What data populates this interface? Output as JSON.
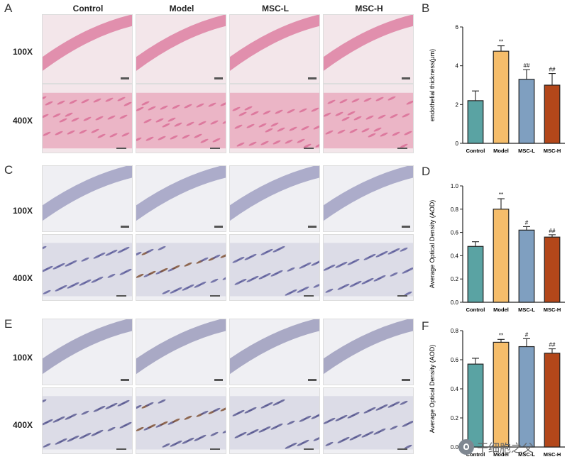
{
  "panel_letters": [
    "A",
    "B",
    "C",
    "D",
    "E",
    "F"
  ],
  "column_headers": [
    "Control",
    "Model",
    "MSC-L",
    "MSC-H"
  ],
  "row_labels": [
    "100X",
    "400X"
  ],
  "micrographs": [
    {
      "panel": "A",
      "stain": "HE",
      "color": "#d96a93"
    },
    {
      "panel": "C",
      "stain": "IHC",
      "color": "#5b5b9a"
    },
    {
      "panel": "E",
      "stain": "IHC",
      "color": "#55558f"
    }
  ],
  "watermark": "干细胞之父",
  "chart_data": [
    {
      "panel": "B",
      "type": "bar",
      "categories": [
        "Control",
        "Model",
        "MSC-L",
        "MSC-H"
      ],
      "values": [
        2.2,
        4.75,
        3.3,
        3.0
      ],
      "errors": [
        0.5,
        0.28,
        0.5,
        0.6
      ],
      "significance": [
        "",
        "**",
        "##",
        "##"
      ],
      "ylabel": "endothelial thickness(μm)",
      "ylim": [
        0,
        6
      ],
      "yticks": [
        "0",
        "2",
        "4",
        "6"
      ],
      "colors": [
        "#5aa3a3",
        "#f5bd6b",
        "#7f9fc0",
        "#b3471a"
      ]
    },
    {
      "panel": "D",
      "type": "bar",
      "categories": [
        "Control",
        "Model",
        "MSC-L",
        "MSC-H"
      ],
      "values": [
        0.48,
        0.8,
        0.62,
        0.56
      ],
      "errors": [
        0.04,
        0.09,
        0.03,
        0.02
      ],
      "significance": [
        "",
        "**",
        "#",
        "##"
      ],
      "ylabel": "Average Optical Density (AOD)",
      "ylim": [
        0,
        1.0
      ],
      "yticks": [
        "0.0",
        "0.2",
        "0.4",
        "0.6",
        "0.8",
        "1.0"
      ],
      "colors": [
        "#5aa3a3",
        "#f5bd6b",
        "#7f9fc0",
        "#b3471a"
      ]
    },
    {
      "panel": "F",
      "type": "bar",
      "categories": [
        "Control",
        "Model",
        "MSC-L",
        "MSC-H"
      ],
      "values": [
        0.57,
        0.72,
        0.69,
        0.645
      ],
      "errors": [
        0.04,
        0.02,
        0.055,
        0.03
      ],
      "significance": [
        "",
        "**",
        "#",
        "##"
      ],
      "ylabel": "Average Optical Density (AOD)",
      "ylim": [
        0,
        0.8
      ],
      "yticks": [
        "0.0",
        "0.2",
        "0.4",
        "0.6",
        "0.8"
      ],
      "colors": [
        "#5aa3a3",
        "#f5bd6b",
        "#7f9fc0",
        "#b3471a"
      ]
    }
  ]
}
